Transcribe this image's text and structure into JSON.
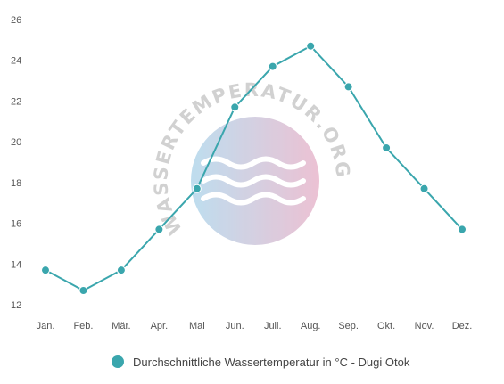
{
  "chart_data": {
    "type": "line",
    "categories": [
      "Jan.",
      "Feb.",
      "Mär.",
      "Apr.",
      "Mai",
      "Jun.",
      "Juli.",
      "Aug.",
      "Sep.",
      "Okt.",
      "Nov.",
      "Dez."
    ],
    "series": [
      {
        "name": "Durchschnittliche Wassertemperatur in °C - Dugi Otok",
        "values": [
          13.7,
          12.7,
          13.7,
          15.7,
          17.7,
          21.7,
          23.7,
          24.7,
          22.7,
          19.7,
          17.7,
          15.7
        ]
      }
    ],
    "ylim": [
      12,
      26
    ],
    "yticks": [
      12,
      14,
      16,
      18,
      20,
      22,
      24,
      26
    ],
    "grid": false,
    "legend": "bottom",
    "colors": {
      "line": "#3aa6ad",
      "marker": "#3aa6ad"
    }
  },
  "watermark": {
    "text": "WASSERTEMPERATUR.ORG",
    "colors": [
      "#b3d8ec",
      "#e9b7cc"
    ]
  }
}
